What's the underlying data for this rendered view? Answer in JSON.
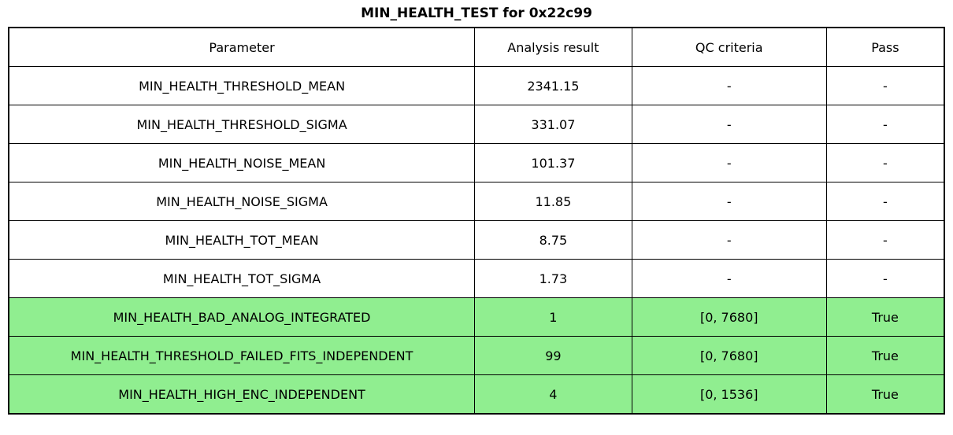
{
  "title": "MIN_HEALTH_TEST for 0x22c99",
  "colors": {
    "pass_green": "#90EE90",
    "border": "#000000",
    "background": "#ffffff"
  },
  "chart_data": {
    "type": "table",
    "title": "MIN_HEALTH_TEST for 0x22c99",
    "columns": [
      "Parameter",
      "Analysis result",
      "QC criteria",
      "Pass"
    ],
    "rows": [
      {
        "parameter": "MIN_HEALTH_THRESHOLD_MEAN",
        "analysis_result": "2341.15",
        "qc_criteria": "-",
        "pass": "-",
        "highlighted": false
      },
      {
        "parameter": "MIN_HEALTH_THRESHOLD_SIGMA",
        "analysis_result": "331.07",
        "qc_criteria": "-",
        "pass": "-",
        "highlighted": false
      },
      {
        "parameter": "MIN_HEALTH_NOISE_MEAN",
        "analysis_result": "101.37",
        "qc_criteria": "-",
        "pass": "-",
        "highlighted": false
      },
      {
        "parameter": "MIN_HEALTH_NOISE_SIGMA",
        "analysis_result": "11.85",
        "qc_criteria": "-",
        "pass": "-",
        "highlighted": false
      },
      {
        "parameter": "MIN_HEALTH_TOT_MEAN",
        "analysis_result": "8.75",
        "qc_criteria": "-",
        "pass": "-",
        "highlighted": false
      },
      {
        "parameter": "MIN_HEALTH_TOT_SIGMA",
        "analysis_result": "1.73",
        "qc_criteria": "-",
        "pass": "-",
        "highlighted": false
      },
      {
        "parameter": "MIN_HEALTH_BAD_ANALOG_INTEGRATED",
        "analysis_result": "1",
        "qc_criteria": "[0, 7680]",
        "pass": "True",
        "highlighted": true
      },
      {
        "parameter": "MIN_HEALTH_THRESHOLD_FAILED_FITS_INDEPENDENT",
        "analysis_result": "99",
        "qc_criteria": "[0, 7680]",
        "pass": "True",
        "highlighted": true
      },
      {
        "parameter": "MIN_HEALTH_HIGH_ENC_INDEPENDENT",
        "analysis_result": "4",
        "qc_criteria": "[0, 1536]",
        "pass": "True",
        "highlighted": true
      }
    ]
  }
}
